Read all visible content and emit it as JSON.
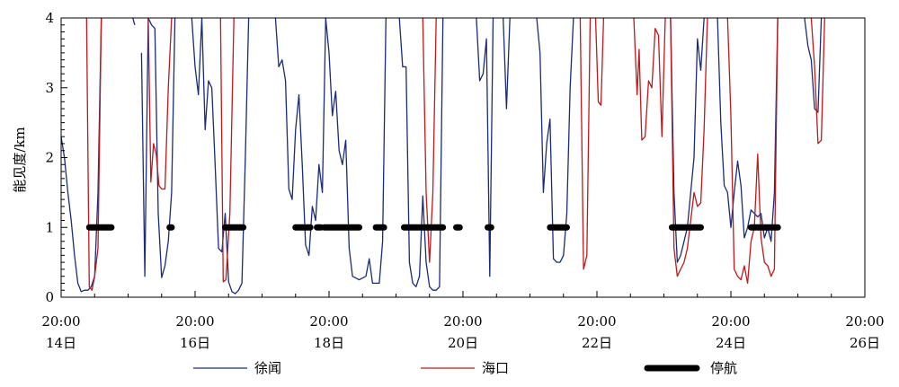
{
  "chart_data": {
    "type": "line",
    "xlabel": "",
    "ylabel": "能见度/km",
    "xlim": [
      0,
      12
    ],
    "ylim": [
      0,
      4
    ],
    "yticks": [
      "0",
      "1",
      "2",
      "3",
      "4"
    ],
    "xticks": [
      {
        "x": 0,
        "time": "20:00",
        "date": "14日"
      },
      {
        "x": 2,
        "time": "20:00",
        "date": "16日"
      },
      {
        "x": 4,
        "time": "20:00",
        "date": "18日"
      },
      {
        "x": 6,
        "time": "20:00",
        "date": "20日"
      },
      {
        "x": 8,
        "time": "20:00",
        "date": "22日"
      },
      {
        "x": 10,
        "time": "20:00",
        "date": "24日"
      },
      {
        "x": 12,
        "time": "20:00",
        "date": "26日"
      }
    ],
    "series": [
      {
        "name": "徐闻",
        "color": "#1a2b7a",
        "points": [
          [
            0.0,
            2.3
          ],
          [
            0.05,
            2.0
          ],
          [
            0.1,
            1.5
          ],
          [
            0.15,
            1.1
          ],
          [
            0.2,
            0.6
          ],
          [
            0.25,
            0.2
          ],
          [
            0.3,
            0.08
          ],
          [
            0.35,
            0.1
          ],
          [
            0.4,
            0.1
          ],
          [
            0.45,
            0.15
          ],
          [
            0.5,
            0.3
          ],
          [
            0.55,
            1.5
          ],
          [
            0.6,
            4.0
          ],
          null,
          [
            1.07,
            4.0
          ],
          [
            1.1,
            3.9
          ],
          null,
          [
            1.2,
            3.5
          ],
          [
            1.25,
            0.3
          ],
          [
            1.3,
            4.0
          ],
          [
            1.35,
            3.9
          ],
          [
            1.4,
            3.85
          ],
          [
            1.45,
            1.2
          ],
          [
            1.5,
            0.28
          ],
          [
            1.55,
            0.45
          ],
          [
            1.6,
            0.8
          ],
          [
            1.65,
            1.5
          ],
          [
            1.7,
            4.0
          ],
          null,
          [
            1.95,
            4.0
          ],
          [
            2.0,
            3.3
          ],
          [
            2.05,
            2.9
          ],
          [
            2.1,
            4.0
          ],
          [
            2.15,
            2.4
          ],
          [
            2.2,
            3.1
          ],
          [
            2.25,
            3.0
          ],
          [
            2.3,
            1.9
          ],
          [
            2.35,
            0.7
          ],
          [
            2.4,
            0.65
          ],
          [
            2.45,
            1.2
          ],
          [
            2.5,
            0.22
          ],
          [
            2.55,
            0.08
          ],
          [
            2.6,
            0.05
          ],
          [
            2.65,
            0.1
          ],
          [
            2.7,
            0.2
          ],
          [
            2.75,
            2.0
          ],
          [
            2.8,
            4.0
          ],
          null,
          [
            3.2,
            4.0
          ],
          [
            3.25,
            3.3
          ],
          [
            3.3,
            3.4
          ],
          [
            3.35,
            3.1
          ],
          [
            3.4,
            1.55
          ],
          [
            3.45,
            1.4
          ],
          [
            3.5,
            2.4
          ],
          [
            3.55,
            2.9
          ],
          [
            3.6,
            1.9
          ],
          [
            3.65,
            0.75
          ],
          [
            3.7,
            0.6
          ],
          [
            3.75,
            1.3
          ],
          [
            3.8,
            1.1
          ],
          [
            3.85,
            1.9
          ],
          [
            3.9,
            1.5
          ],
          [
            3.95,
            4.0
          ],
          [
            4.0,
            3.5
          ],
          [
            4.05,
            2.6
          ],
          [
            4.1,
            2.95
          ],
          [
            4.15,
            2.1
          ],
          [
            4.2,
            1.9
          ],
          [
            4.25,
            2.25
          ],
          [
            4.3,
            0.7
          ],
          [
            4.35,
            0.3
          ],
          [
            4.45,
            0.25
          ],
          [
            4.55,
            0.3
          ],
          [
            4.6,
            0.55
          ],
          [
            4.65,
            0.2
          ],
          [
            4.75,
            0.2
          ],
          [
            4.8,
            0.8
          ],
          [
            4.85,
            4.0
          ],
          null,
          [
            5.05,
            4.0
          ],
          [
            5.1,
            3.3
          ],
          [
            5.15,
            3.3
          ],
          [
            5.2,
            0.5
          ],
          [
            5.25,
            0.2
          ],
          [
            5.3,
            0.15
          ],
          [
            5.35,
            0.3
          ],
          [
            5.4,
            1.45
          ],
          [
            5.45,
            0.5
          ],
          [
            5.5,
            0.15
          ],
          [
            5.55,
            0.1
          ],
          [
            5.6,
            0.1
          ],
          [
            5.65,
            0.15
          ],
          [
            5.7,
            4.0
          ],
          null,
          [
            6.2,
            4.0
          ],
          [
            6.25,
            3.1
          ],
          [
            6.3,
            3.2
          ],
          [
            6.35,
            3.7
          ],
          [
            6.4,
            0.3
          ],
          [
            6.45,
            4.0
          ],
          null,
          [
            6.6,
            4.0
          ],
          [
            6.65,
            2.7
          ],
          [
            6.7,
            4.0
          ],
          null,
          [
            7.1,
            4.0
          ],
          [
            7.15,
            3.5
          ],
          [
            7.2,
            1.5
          ],
          [
            7.25,
            2.2
          ],
          [
            7.3,
            2.55
          ],
          [
            7.35,
            0.55
          ],
          [
            7.4,
            0.5
          ],
          [
            7.45,
            0.5
          ],
          [
            7.5,
            0.6
          ],
          [
            7.55,
            1.2
          ],
          [
            7.6,
            3.0
          ],
          [
            7.65,
            4.0
          ],
          null,
          [
            9.1,
            4.0
          ],
          [
            9.15,
            1.5
          ],
          [
            9.2,
            0.5
          ],
          [
            9.25,
            0.6
          ],
          [
            9.3,
            0.8
          ],
          [
            9.35,
            1.0
          ],
          [
            9.4,
            1.5
          ],
          [
            9.45,
            2.0
          ],
          [
            9.5,
            3.7
          ],
          [
            9.55,
            3.25
          ],
          [
            9.6,
            4.0
          ],
          null,
          [
            9.8,
            4.0
          ],
          [
            9.85,
            2.5
          ],
          [
            9.9,
            1.6
          ],
          [
            9.95,
            1.5
          ],
          [
            10.0,
            1.0
          ],
          [
            10.05,
            1.5
          ],
          [
            10.1,
            1.95
          ],
          [
            10.15,
            1.6
          ],
          [
            10.2,
            0.85
          ],
          [
            10.25,
            1.0
          ],
          [
            10.3,
            1.25
          ],
          [
            10.35,
            1.2
          ],
          [
            10.4,
            1.15
          ],
          [
            10.45,
            1.2
          ],
          [
            10.5,
            0.85
          ],
          [
            10.55,
            1.0
          ],
          [
            10.6,
            0.8
          ],
          [
            10.65,
            1.5
          ],
          [
            10.7,
            4.0
          ],
          null,
          [
            11.1,
            4.0
          ],
          [
            11.15,
            3.6
          ],
          [
            11.2,
            3.4
          ],
          [
            11.25,
            2.7
          ],
          [
            11.3,
            2.65
          ],
          [
            11.35,
            4.0
          ]
        ]
      },
      {
        "name": "海口",
        "color": "#c0181c",
        "points": [
          [
            0.38,
            4.0
          ],
          [
            0.42,
            0.15
          ],
          [
            0.46,
            0.1
          ],
          [
            0.5,
            0.3
          ],
          [
            0.55,
            0.7
          ],
          [
            0.6,
            4.0
          ],
          null,
          [
            1.3,
            4.0
          ],
          [
            1.34,
            1.65
          ],
          [
            1.38,
            2.2
          ],
          [
            1.42,
            2.05
          ],
          [
            1.46,
            1.6
          ],
          [
            1.5,
            1.55
          ],
          [
            1.55,
            1.55
          ],
          [
            1.6,
            3.0
          ],
          [
            1.65,
            4.0
          ],
          null,
          [
            2.38,
            4.0
          ],
          [
            2.42,
            0.22
          ],
          [
            2.46,
            0.25
          ],
          [
            2.52,
            1.2
          ],
          [
            2.58,
            4.0
          ],
          null,
          [
            5.4,
            4.0
          ],
          [
            5.45,
            1.5
          ],
          [
            5.5,
            0.5
          ],
          [
            5.55,
            1.5
          ],
          [
            5.6,
            4.0
          ],
          null,
          [
            7.75,
            4.0
          ],
          [
            7.8,
            0.4
          ],
          [
            7.85,
            0.6
          ],
          [
            7.9,
            4.0
          ],
          null,
          [
            7.98,
            4.0
          ],
          [
            8.02,
            2.8
          ],
          [
            8.06,
            2.75
          ],
          [
            8.1,
            4.0
          ],
          null,
          [
            8.55,
            4.0
          ],
          [
            8.6,
            2.9
          ],
          [
            8.63,
            3.55
          ],
          [
            8.67,
            2.25
          ],
          [
            8.72,
            2.3
          ],
          [
            8.77,
            3.1
          ],
          [
            8.82,
            3.0
          ],
          [
            8.87,
            3.85
          ],
          [
            8.92,
            3.75
          ],
          [
            8.97,
            2.3
          ],
          [
            9.02,
            4.0
          ],
          null,
          [
            9.1,
            4.0
          ],
          [
            9.15,
            0.7
          ],
          [
            9.2,
            0.3
          ],
          [
            9.25,
            0.4
          ],
          [
            9.3,
            0.5
          ],
          [
            9.35,
            0.7
          ],
          [
            9.4,
            1.1
          ],
          [
            9.45,
            1.5
          ],
          [
            9.5,
            1.3
          ],
          [
            9.55,
            1.35
          ],
          [
            9.6,
            2.4
          ],
          [
            9.65,
            4.0
          ],
          null,
          [
            9.95,
            4.0
          ],
          [
            10.0,
            2.6
          ],
          [
            10.05,
            0.4
          ],
          [
            10.1,
            0.3
          ],
          [
            10.15,
            0.25
          ],
          [
            10.2,
            0.45
          ],
          [
            10.25,
            0.2
          ],
          [
            10.3,
            0.8
          ],
          [
            10.35,
            1.0
          ],
          [
            10.4,
            2.05
          ],
          [
            10.45,
            0.85
          ],
          [
            10.5,
            0.5
          ],
          [
            10.55,
            0.45
          ],
          [
            10.6,
            0.3
          ],
          [
            10.65,
            0.4
          ],
          [
            10.7,
            4.0
          ],
          null,
          [
            11.2,
            4.0
          ],
          [
            11.25,
            3.3
          ],
          [
            11.3,
            2.2
          ],
          [
            11.35,
            2.25
          ],
          [
            11.4,
            4.0
          ]
        ]
      }
    ],
    "suspension": {
      "name": "停航",
      "color": "#000000",
      "value": 1,
      "segments": [
        [
          0.42,
          0.75
        ],
        [
          1.62,
          1.65
        ],
        [
          2.45,
          2.72
        ],
        [
          3.5,
          3.72
        ],
        [
          3.82,
          3.88
        ],
        [
          3.93,
          4.45
        ],
        [
          4.7,
          4.82
        ],
        [
          5.12,
          5.7
        ],
        [
          5.9,
          5.95
        ],
        [
          6.37,
          6.42
        ],
        [
          7.3,
          7.55
        ],
        [
          9.12,
          9.55
        ],
        [
          10.3,
          10.7
        ]
      ]
    },
    "legend": {
      "placement": "bottom"
    }
  }
}
